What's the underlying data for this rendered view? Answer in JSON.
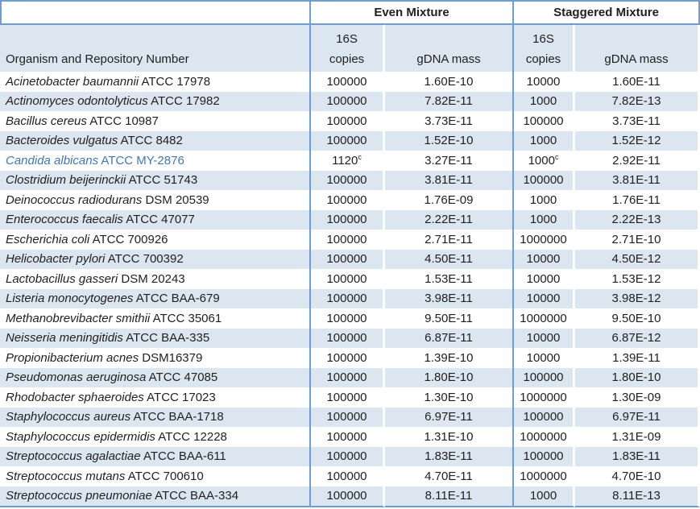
{
  "colors": {
    "border_blue": "#6d9dd1",
    "row_shade": "#dce6f1",
    "link_blue": "#4077b8",
    "text": "#1f1f1f"
  },
  "header": {
    "organism": "Organism and Repository Number",
    "groups": [
      {
        "label": "Even Mixture"
      },
      {
        "label": "Staggered Mixture"
      }
    ],
    "sub": {
      "s16_top": "16S",
      "s16_bottom": "copies",
      "gdna": "gDNA mass"
    }
  },
  "rows": [
    {
      "species": "Acinetobacter baumannii",
      "repo": "ATCC 17978",
      "even_16s": "100000",
      "even_gdna": "1.60E-10",
      "stag_16s": "10000",
      "stag_gdna": "1.60E-11",
      "blue": false
    },
    {
      "species": "Actinomyces odontolyticus",
      "repo": "ATCC 17982",
      "even_16s": "100000",
      "even_gdna": "7.82E-11",
      "stag_16s": "1000",
      "stag_gdna": "7.82E-13",
      "blue": false
    },
    {
      "species": "Bacillus cereus",
      "repo": "ATCC 10987",
      "even_16s": "100000",
      "even_gdna": "3.73E-11",
      "stag_16s": "100000",
      "stag_gdna": "3.73E-11",
      "blue": false
    },
    {
      "species": "Bacteroides vulgatus",
      "repo": "ATCC 8482",
      "even_16s": "100000",
      "even_gdna": "1.52E-10",
      "stag_16s": "1000",
      "stag_gdna": "1.52E-12",
      "blue": false
    },
    {
      "species": "Candida albicans",
      "repo": "ATCC MY-2876",
      "even_16s": "1120",
      "even_16s_sup": "c",
      "even_gdna": "3.27E-11",
      "stag_16s": "1000",
      "stag_16s_sup": "c",
      "stag_gdna": "2.92E-11",
      "blue": true
    },
    {
      "species": "Clostridium beijerinckii",
      "repo": "ATCC 51743",
      "even_16s": "100000",
      "even_gdna": "3.81E-11",
      "stag_16s": "100000",
      "stag_gdna": "3.81E-11",
      "blue": false
    },
    {
      "species": "Deinococcus radiodurans",
      "repo": "DSM 20539",
      "even_16s": "100000",
      "even_gdna": "1.76E-09",
      "stag_16s": "1000",
      "stag_gdna": "1.76E-11",
      "blue": false
    },
    {
      "species": "Enterococcus faecalis",
      "repo": "ATCC 47077",
      "even_16s": "100000",
      "even_gdna": "2.22E-11",
      "stag_16s": "1000",
      "stag_gdna": "2.22E-13",
      "blue": false
    },
    {
      "species": "Escherichia coli",
      "repo": "ATCC 700926",
      "even_16s": "100000",
      "even_gdna": "2.71E-11",
      "stag_16s": "1000000",
      "stag_gdna": "2.71E-10",
      "blue": false
    },
    {
      "species": "Helicobacter pylori",
      "repo": "ATCC 700392",
      "even_16s": "100000",
      "even_gdna": "4.50E-11",
      "stag_16s": "10000",
      "stag_gdna": "4.50E-12",
      "blue": false
    },
    {
      "species": "Lactobacillus gasseri",
      "repo": "DSM 20243",
      "even_16s": "100000",
      "even_gdna": "1.53E-11",
      "stag_16s": "10000",
      "stag_gdna": "1.53E-12",
      "blue": false
    },
    {
      "species": "Listeria monocytogenes",
      "repo": "ATCC BAA-679",
      "even_16s": "100000",
      "even_gdna": "3.98E-11",
      "stag_16s": "10000",
      "stag_gdna": "3.98E-12",
      "blue": false
    },
    {
      "species": "Methanobrevibacter smithii",
      "repo": "ATCC 35061",
      "even_16s": "100000",
      "even_gdna": "9.50E-11",
      "stag_16s": "1000000",
      "stag_gdna": "9.50E-10",
      "blue": false
    },
    {
      "species": "Neisseria meningitidis",
      "repo": "ATCC BAA-335",
      "even_16s": "100000",
      "even_gdna": "6.87E-11",
      "stag_16s": "10000",
      "stag_gdna": "6.87E-12",
      "blue": false
    },
    {
      "species": "Propionibacterium acnes",
      "repo": "DSM16379",
      "even_16s": "100000",
      "even_gdna": "1.39E-10",
      "stag_16s": "10000",
      "stag_gdna": "1.39E-11",
      "blue": false
    },
    {
      "species": "Pseudomonas aeruginosa",
      "repo": "ATCC 47085",
      "even_16s": "100000",
      "even_gdna": "1.80E-10",
      "stag_16s": "100000",
      "stag_gdna": "1.80E-10",
      "blue": false
    },
    {
      "species": "Rhodobacter sphaeroides",
      "repo": "ATCC 17023",
      "even_16s": "100000",
      "even_gdna": "1.30E-10",
      "stag_16s": "1000000",
      "stag_gdna": "1.30E-09",
      "blue": false
    },
    {
      "species": "Staphylococcus aureus",
      "repo": "ATCC BAA-1718",
      "even_16s": "100000",
      "even_gdna": "6.97E-11",
      "stag_16s": "100000",
      "stag_gdna": "6.97E-11",
      "blue": false
    },
    {
      "species": "Staphylococcus epidermidis",
      "repo": "ATCC 12228",
      "even_16s": "100000",
      "even_gdna": "1.31E-10",
      "stag_16s": "1000000",
      "stag_gdna": "1.31E-09",
      "blue": false
    },
    {
      "species": "Streptococcus agalactiae",
      "repo": "ATCC BAA-611",
      "even_16s": "100000",
      "even_gdna": "1.83E-11",
      "stag_16s": "100000",
      "stag_gdna": "1.83E-11",
      "blue": false
    },
    {
      "species": "Streptococcus mutans",
      "repo": "ATCC 700610",
      "even_16s": "100000",
      "even_gdna": "4.70E-11",
      "stag_16s": "1000000",
      "stag_gdna": "4.70E-10",
      "blue": false
    },
    {
      "species": "Streptococcus pneumoniae",
      "repo": "ATCC BAA-334",
      "even_16s": "100000",
      "even_gdna": "8.11E-11",
      "stag_16s": "1000",
      "stag_gdna": "8.11E-13",
      "blue": false
    }
  ]
}
